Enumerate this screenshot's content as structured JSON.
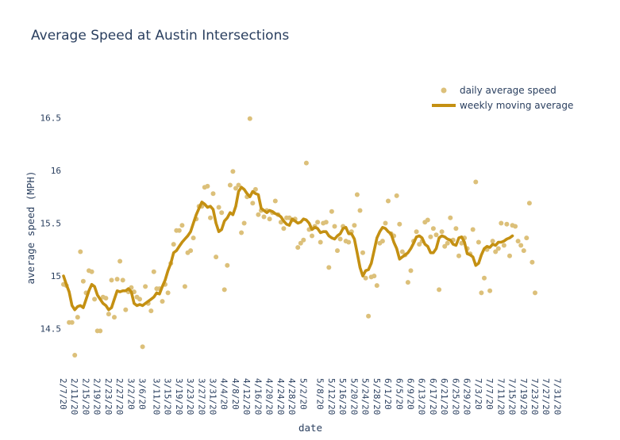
{
  "chart_data": {
    "type": "scatter+line",
    "title": "Average Speed at Austin Intersections",
    "xlabel": "date",
    "ylabel": "average speed (MPH)",
    "ylim": [
      14.1,
      16.9
    ],
    "xlim": [
      "2020-02-07",
      "2020-08-01"
    ],
    "yticks": [
      14.5,
      15,
      15.5,
      16,
      16.5
    ],
    "ytick_labels": [
      "14.5",
      "15",
      "15.5",
      "16",
      "16.5"
    ],
    "xtick_labels": [
      "2/7/20",
      "2/11/20",
      "2/15/20",
      "2/19/20",
      "2/23/20",
      "2/27/20",
      "3/2/20",
      "3/6/20",
      "3/11/20",
      "3/15/20",
      "3/19/20",
      "3/23/20",
      "3/27/20",
      "3/31/20",
      "4/4/20",
      "4/8/20",
      "4/12/20",
      "4/16/20",
      "4/20/20",
      "4/24/20",
      "4/28/20",
      "5/2/20",
      "5/8/20",
      "5/12/20",
      "5/16/20",
      "5/20/20",
      "5/24/20",
      "5/28/20",
      "6/1/20",
      "6/5/20",
      "6/9/20",
      "6/13/20",
      "6/17/20",
      "6/21/20",
      "6/25/20",
      "6/29/20",
      "7/3/20",
      "7/7/20",
      "7/11/20",
      "7/15/20",
      "7/19/20",
      "7/23/20",
      "7/27/20",
      "7/31/20"
    ],
    "grid": false,
    "legend_position": "top-right",
    "colors": {
      "scatter": "#dcc07a",
      "line": "#c49012"
    },
    "series": [
      {
        "name": "daily average speed",
        "kind": "scatter",
        "start_date": "2020-02-07",
        "values": [
          14.92,
          14.91,
          14.56,
          14.56,
          14.25,
          14.61,
          15.23,
          14.95,
          14.84,
          15.05,
          15.04,
          14.78,
          14.48,
          14.48,
          14.8,
          14.79,
          14.64,
          14.96,
          14.61,
          14.97,
          15.14,
          14.96,
          14.68,
          14.85,
          14.89,
          14.85,
          14.8,
          14.78,
          14.33,
          14.9,
          14.74,
          14.67,
          15.04,
          14.88,
          14.88,
          14.76,
          14.92,
          14.84,
          15.12,
          15.3,
          15.43,
          15.43,
          15.48,
          14.9,
          15.22,
          15.24,
          15.36,
          15.54,
          15.66,
          15.66,
          15.84,
          15.85,
          15.55,
          15.78,
          15.18,
          15.65,
          15.6,
          14.87,
          15.1,
          15.86,
          15.99,
          15.83,
          15.86,
          15.41,
          15.5,
          15.75,
          16.49,
          15.69,
          15.82,
          15.58,
          15.62,
          15.56,
          15.62,
          15.54,
          15.6,
          15.71,
          15.58,
          15.51,
          15.45,
          15.55,
          15.55,
          15.53,
          15.54,
          15.27,
          15.31,
          15.34,
          16.07,
          15.44,
          15.38,
          15.47,
          15.51,
          15.32,
          15.5,
          15.51,
          15.08,
          15.61,
          15.47,
          15.24,
          15.35,
          15.47,
          15.33,
          15.32,
          15.42,
          15.48,
          15.77,
          15.62,
          15.22,
          14.98,
          14.62,
          14.99,
          15.0,
          14.91,
          15.31,
          15.33,
          15.5,
          15.71,
          15.4,
          15.38,
          15.76,
          15.49,
          15.23,
          15.2,
          14.94,
          15.05,
          15.33,
          15.42,
          15.3,
          15.33,
          15.51,
          15.53,
          15.37,
          15.45,
          15.39,
          14.87,
          15.42,
          15.28,
          15.31,
          15.55,
          15.34,
          15.45,
          15.19,
          15.31,
          15.36,
          15.26,
          15.21,
          15.44,
          15.89,
          15.32,
          14.84,
          14.98,
          15.25,
          14.86,
          15.33,
          15.23,
          15.26,
          15.5,
          15.29,
          15.49,
          15.19,
          15.48,
          15.47,
          15.33,
          15.29,
          15.24,
          15.36,
          15.69,
          15.13,
          14.84
        ]
      },
      {
        "name": "weekly moving average",
        "kind": "line",
        "start_date": "2020-02-07",
        "values": [
          15.0,
          14.92,
          14.85,
          14.72,
          14.68,
          14.71,
          14.72,
          14.7,
          14.78,
          14.86,
          14.92,
          14.9,
          14.82,
          14.78,
          14.74,
          14.72,
          14.68,
          14.7,
          14.78,
          14.86,
          14.85,
          14.86,
          14.86,
          14.88,
          14.85,
          14.74,
          14.72,
          14.73,
          14.72,
          14.74,
          14.76,
          14.78,
          14.8,
          14.84,
          14.83,
          14.9,
          14.96,
          15.05,
          15.12,
          15.22,
          15.24,
          15.28,
          15.32,
          15.35,
          15.38,
          15.42,
          15.5,
          15.58,
          15.64,
          15.7,
          15.68,
          15.65,
          15.66,
          15.63,
          15.5,
          15.42,
          15.44,
          15.52,
          15.55,
          15.6,
          15.58,
          15.66,
          15.8,
          15.84,
          15.82,
          15.78,
          15.75,
          15.8,
          15.78,
          15.77,
          15.64,
          15.62,
          15.6,
          15.62,
          15.61,
          15.59,
          15.58,
          15.56,
          15.52,
          15.49,
          15.48,
          15.54,
          15.52,
          15.5,
          15.51,
          15.54,
          15.53,
          15.5,
          15.44,
          15.46,
          15.45,
          15.41,
          15.42,
          15.42,
          15.38,
          15.36,
          15.35,
          15.38,
          15.4,
          15.45,
          15.46,
          15.4,
          15.4,
          15.35,
          15.22,
          15.08,
          15.0,
          15.05,
          15.06,
          15.12,
          15.24,
          15.36,
          15.42,
          15.46,
          15.45,
          15.42,
          15.4,
          15.32,
          15.26,
          15.16,
          15.18,
          15.2,
          15.22,
          15.26,
          15.31,
          15.37,
          15.38,
          15.36,
          15.3,
          15.28,
          15.22,
          15.22,
          15.26,
          15.36,
          15.38,
          15.37,
          15.35,
          15.34,
          15.3,
          15.29,
          15.36,
          15.37,
          15.32,
          15.21,
          15.2,
          15.18,
          15.1,
          15.12,
          15.2,
          15.26,
          15.28,
          15.27,
          15.3,
          15.29,
          15.32,
          15.32,
          15.33,
          15.35,
          15.36,
          15.38
        ]
      }
    ]
  }
}
